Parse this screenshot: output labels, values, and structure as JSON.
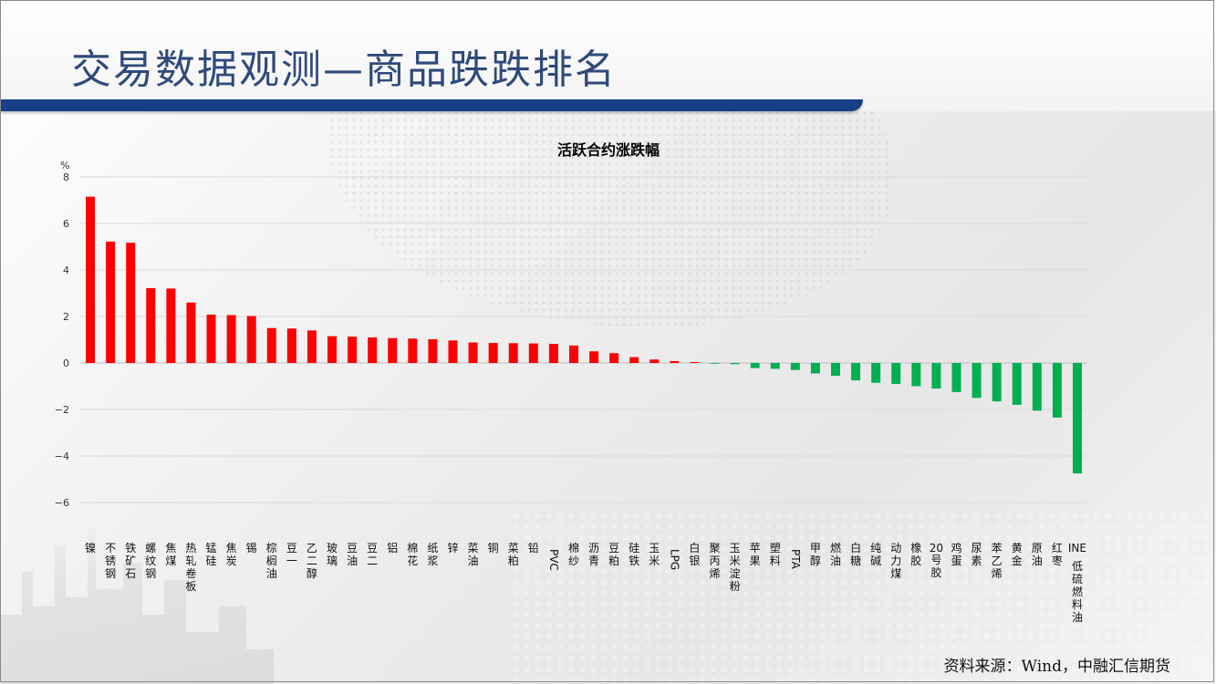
{
  "header": {
    "title": "交易数据观测—商品跌跌排名"
  },
  "source_note": "资料来源：Wind，中融汇信期货",
  "colors": {
    "positive": "#ff0000",
    "negative": "#00b050",
    "title_bar": "#173f86",
    "title_text": "#2f4a7a"
  },
  "chart_data": {
    "type": "bar",
    "title": "活跃合约涨跌幅",
    "ylabel": "%",
    "ylim": [
      -6,
      8
    ],
    "yticks": [
      8,
      6,
      4,
      2,
      0,
      -2,
      -4,
      -6
    ],
    "ytick_labels": [
      "8",
      "6",
      "4",
      "2",
      "0",
      "−2",
      "−4",
      "−6"
    ],
    "grid": true,
    "categories": [
      "镍",
      "不锈钢",
      "铁矿石",
      "螺纹钢",
      "焦煤",
      "热轧卷板",
      "锰硅",
      "焦炭",
      "锡",
      "棕榈油",
      "豆一",
      "乙二醇",
      "玻璃",
      "豆油",
      "豆二",
      "铝",
      "棉花",
      "纸浆",
      "锌",
      "菜油",
      "铜",
      "菜粕",
      "铅",
      "PVC",
      "棉纱",
      "沥青",
      "豆粕",
      "硅铁",
      "玉米",
      "LPG",
      "白银",
      "聚丙烯",
      "玉米淀粉",
      "苹果",
      "塑料",
      "PTA",
      "甲醇",
      "燃油",
      "白糖",
      "纯碱",
      "动力煤",
      "橡胶",
      "20号胶",
      "鸡蛋",
      "尿素",
      "苯乙烯",
      "黄金",
      "原油",
      "红枣",
      "INE低硫燃料油"
    ],
    "values": [
      7.15,
      5.22,
      5.17,
      3.22,
      3.2,
      2.6,
      2.08,
      2.06,
      2.02,
      1.5,
      1.48,
      1.4,
      1.15,
      1.13,
      1.1,
      1.07,
      1.05,
      1.02,
      0.97,
      0.88,
      0.86,
      0.85,
      0.84,
      0.82,
      0.75,
      0.5,
      0.42,
      0.25,
      0.15,
      0.08,
      0.04,
      -0.02,
      -0.05,
      -0.22,
      -0.25,
      -0.3,
      -0.45,
      -0.55,
      -0.75,
      -0.85,
      -0.9,
      -1.0,
      -1.1,
      -1.25,
      -1.5,
      -1.65,
      -1.8,
      -2.05,
      -2.35,
      -4.75
    ]
  }
}
